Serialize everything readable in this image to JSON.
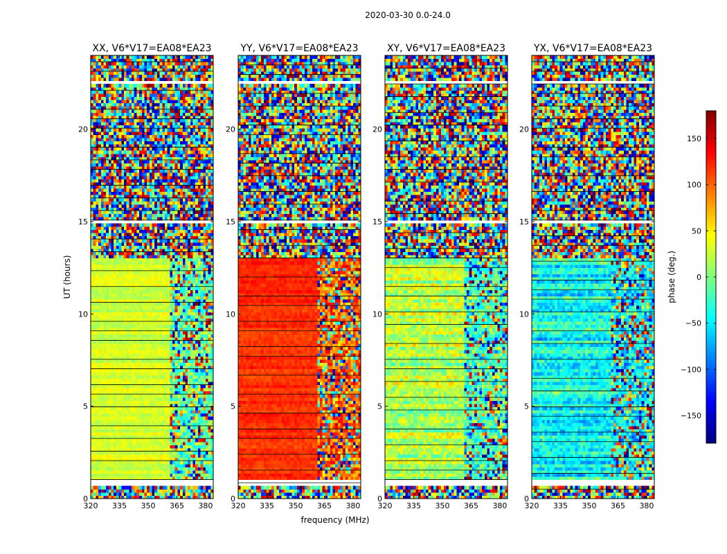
{
  "chart_data": {
    "type": "heatmap",
    "suptitle": "2020-03-30 0.0-24.0",
    "xlabel": "frequency (MHz)",
    "ylabel": "UT (hours)",
    "xlim": [
      320,
      384
    ],
    "ylim": [
      0,
      24
    ],
    "x_ticks": [
      320,
      335,
      350,
      365,
      380
    ],
    "y_ticks": [
      0,
      5,
      10,
      15,
      20
    ],
    "colorbar": {
      "label": "phase (deg.)",
      "range": [
        -180,
        180
      ],
      "ticks": [
        150,
        100,
        50,
        0,
        -50,
        -100,
        -150
      ],
      "tick_labels": [
        "150",
        "100",
        "50",
        "0",
        "−50",
        "−100",
        "−150"
      ],
      "colormap": "jet",
      "colors": [
        "#00007f",
        "#0000ff",
        "#007fff",
        "#00ffff",
        "#7fff7f",
        "#ffff00",
        "#ff7f00",
        "#ff0000",
        "#7f0000"
      ]
    },
    "band_edge_mhz": 361,
    "empty_time_gaps_hours": [
      [
        0.7,
        1.1
      ],
      [
        15.0,
        15.1
      ],
      [
        22.4,
        22.6
      ]
    ],
    "panels": [
      {
        "title": "XX, V6*V17=EA08*EA23",
        "low_band_phase_deg": 30,
        "high_band_phase_deg": -10,
        "phase_scatter_deg": 25
      },
      {
        "title": "YY, V6*V17=EA08*EA23",
        "low_band_phase_deg": 120,
        "high_band_phase_deg": 100,
        "phase_scatter_deg": 20
      },
      {
        "title": "XY, V6*V17=EA08*EA23",
        "low_band_phase_deg": 20,
        "high_band_phase_deg": -20,
        "phase_scatter_deg": 60
      },
      {
        "title": "YX, V6*V17=EA08*EA23",
        "low_band_phase_deg": -40,
        "high_band_phase_deg": -45,
        "phase_scatter_deg": 60
      }
    ]
  }
}
